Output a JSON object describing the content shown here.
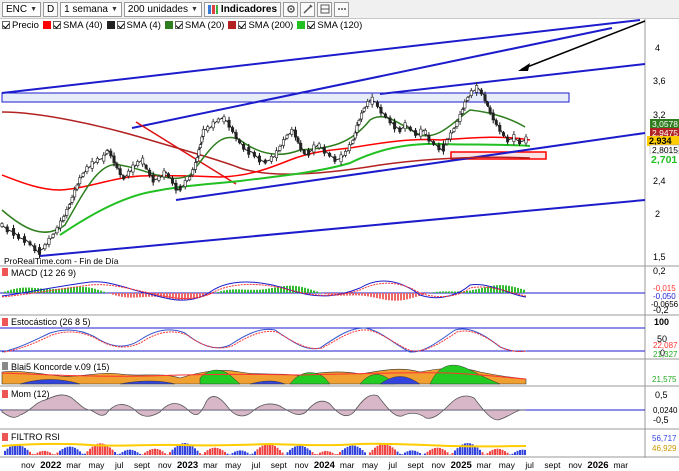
{
  "toolbar": {
    "symbol": "ENC",
    "mode": "D",
    "period": "1 semana",
    "units": "200 unidades",
    "indicators": "Indicadores"
  },
  "legend": {
    "items": [
      {
        "label": "Precio",
        "color": "#000000"
      },
      {
        "label": "SMA (40)",
        "color": "#ff0000"
      },
      {
        "label": "SMA (4)",
        "color": "#000000"
      },
      {
        "label": "SMA (20)",
        "color": "#2e7d1e"
      },
      {
        "label": "SMA (200)",
        "color": "#b22222"
      },
      {
        "label": "SMA (120)",
        "color": "#22c022"
      }
    ]
  },
  "watermark": "ProRealTime.com - Fin de Día",
  "price_axis": {
    "ticks": [
      "4",
      "3,6",
      "3,2",
      "2,4",
      "2",
      "1,5"
    ],
    "tags": [
      {
        "text": "3,0578",
        "color": "#2e7d1e"
      },
      {
        "text": "2,9475",
        "color": "#b22222"
      },
      {
        "text": "2,934",
        "color": "#ffcc00"
      },
      {
        "text": "2,8015",
        "color": "#000000"
      },
      {
        "text": "2,701",
        "color": "#22c022"
      }
    ]
  },
  "time_axis": [
    "nov",
    "2022",
    "mar",
    "may",
    "jul",
    "sept",
    "nov",
    "2023",
    "mar",
    "may",
    "jul",
    "sept",
    "nov",
    "2024",
    "mar",
    "may",
    "jul",
    "sept",
    "nov",
    "2025",
    "mar",
    "may",
    "jul",
    "sept",
    "nov",
    "2026",
    "mar"
  ],
  "panes": {
    "macd": {
      "title": "MACD (12 26 9)",
      "ticks": [
        "0,2",
        "-0,2"
      ],
      "tags": [
        "-0,015",
        "-0,050",
        "-0,0656"
      ]
    },
    "stoch": {
      "title": "Estocástico (26 8 5)",
      "ticks": [
        "100",
        "50",
        "0"
      ],
      "tags": [
        "22,087",
        "21,327"
      ]
    },
    "koncorde": {
      "title": "Blai5 Koncorde v.09 (15)",
      "tags": [
        "21,575"
      ]
    },
    "mom": {
      "title": "Mom (12)",
      "ticks": [
        "0,5",
        "-0,5"
      ],
      "tags": [
        "0,0240"
      ]
    },
    "filtro": {
      "title": "FILTRO RSI",
      "tags": [
        "56,717",
        "46,929"
      ]
    }
  },
  "colors": {
    "sma40": "#ff0000",
    "sma20": "#2e7d1e",
    "sma200": "#b22222",
    "sma120": "#22c022",
    "trendline": "#1c1ccc",
    "rect_blue": "#1c1ccc",
    "rect_red": "#ff0000"
  }
}
